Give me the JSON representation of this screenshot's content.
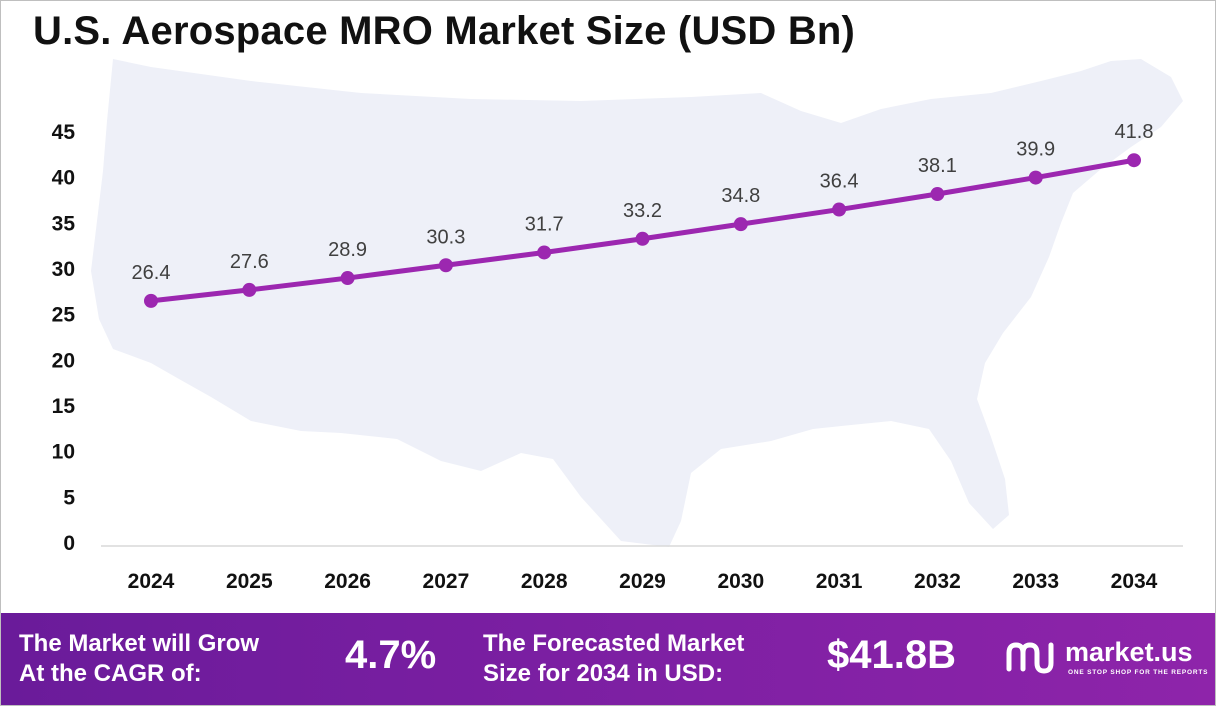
{
  "title": "U.S. Aerospace MRO Market Size (USD Bn)",
  "colors": {
    "line": "#9c27b0",
    "footer": "#7b1fa2",
    "map": "#eef0f8",
    "axis": "#d9d9d9",
    "text": "#111111"
  },
  "chart_data": {
    "type": "line",
    "categories": [
      "2024",
      "2025",
      "2026",
      "2027",
      "2028",
      "2029",
      "2030",
      "2031",
      "2032",
      "2033",
      "2034"
    ],
    "series": [
      {
        "values": [
          26.4,
          27.6,
          28.9,
          30.3,
          31.7,
          33.2,
          34.8,
          36.4,
          38.1,
          39.9,
          41.8
        ]
      }
    ],
    "y_ticks": [
      "0",
      "5",
      "10",
      "15",
      "20",
      "25",
      "30",
      "35",
      "40",
      "45"
    ],
    "ylim": [
      0,
      45
    ],
    "grid": false,
    "data_labels": true,
    "background": "map of the United States"
  },
  "footer": {
    "cagr_label_line1": "The Market will Grow",
    "cagr_label_line2": "At the CAGR of:",
    "cagr_value": "4.7%",
    "forecast_label_line1": "The Forecasted Market",
    "forecast_label_line2": "Size for 2034 in USD:",
    "forecast_value": "$41.8B",
    "logo_name": "market.us",
    "logo_tagline": "ONE STOP SHOP FOR THE REPORTS",
    "logo_icon": "market-us-logo-icon"
  }
}
